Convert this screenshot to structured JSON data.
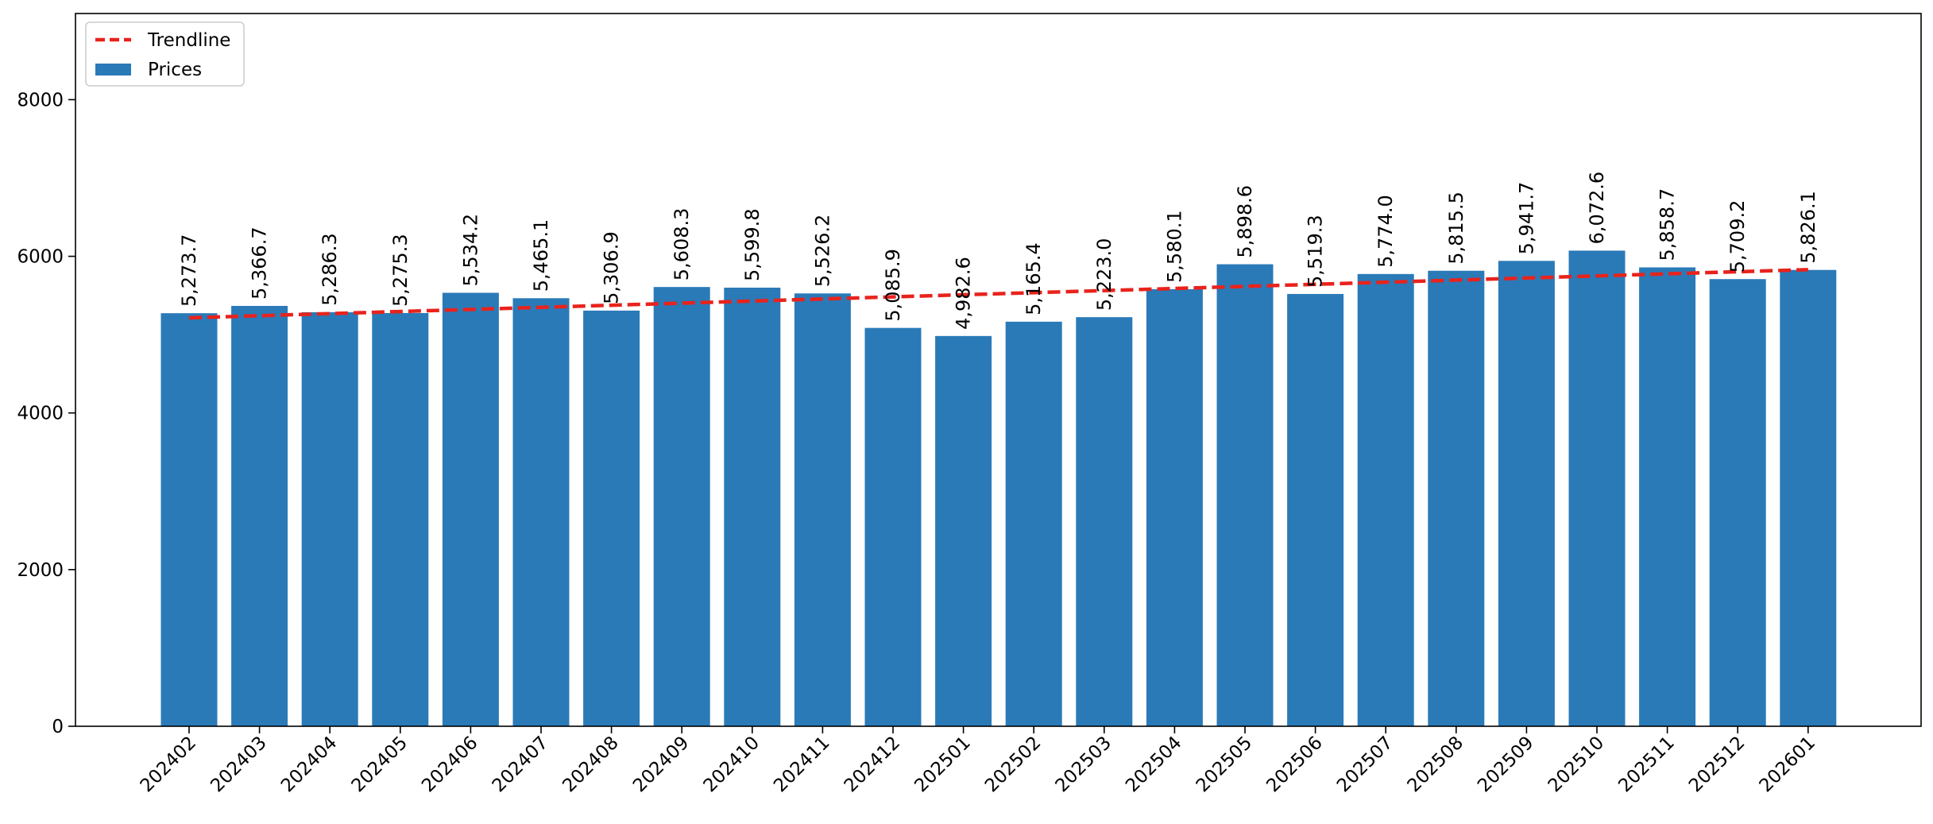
{
  "chart_data": {
    "type": "bar",
    "categories": [
      "202402",
      "202403",
      "202404",
      "202405",
      "202406",
      "202407",
      "202408",
      "202409",
      "202410",
      "202411",
      "202412",
      "202501",
      "202502",
      "202503",
      "202504",
      "202505",
      "202506",
      "202507",
      "202508",
      "202509",
      "202510",
      "202511",
      "202512",
      "202601"
    ],
    "series": [
      {
        "name": "Prices",
        "type": "bar",
        "color": "#2a7ab8",
        "values": [
          5273.7,
          5366.7,
          5286.3,
          5275.3,
          5534.2,
          5465.1,
          5306.9,
          5608.3,
          5599.8,
          5526.2,
          5085.9,
          4982.6,
          5165.4,
          5223.0,
          5580.1,
          5898.6,
          5519.3,
          5774.0,
          5815.5,
          5941.7,
          6072.6,
          5858.7,
          5709.2,
          5826.1
        ]
      },
      {
        "name": "Trendline",
        "type": "line",
        "style": "dashed",
        "color": "#e8231c",
        "start": 5215,
        "end": 5830
      }
    ],
    "data_labels": [
      "5,273.7",
      "5,366.7",
      "5,286.3",
      "5,275.3",
      "5,534.2",
      "5,465.1",
      "5,306.9",
      "5,608.3",
      "5,599.8",
      "5,526.2",
      "5,085.9",
      "4,982.6",
      "5,165.4",
      "5,223.0",
      "5,580.1",
      "5,898.6",
      "5,519.3",
      "5,774.0",
      "5,815.5",
      "5,941.7",
      "6,072.6",
      "5,858.7",
      "5,709.2",
      "5,826.1"
    ],
    "y_ticks": [
      {
        "value": 0,
        "label": "0"
      },
      {
        "value": 2000,
        "label": "2000"
      },
      {
        "value": 4000,
        "label": "4000"
      },
      {
        "value": 6000,
        "label": "6000"
      },
      {
        "value": 8000,
        "label": "8000"
      }
    ],
    "ylim": [
      0,
      9100
    ],
    "title": "",
    "xlabel": "",
    "ylabel": "",
    "legend": {
      "position": "top-left",
      "entries": [
        {
          "label": "Trendline",
          "marker": "dashed-line",
          "color": "#e8231c"
        },
        {
          "label": "Prices",
          "marker": "patch",
          "color": "#2a7ab8"
        }
      ]
    },
    "grid": false,
    "x_tick_rotation": 45
  }
}
